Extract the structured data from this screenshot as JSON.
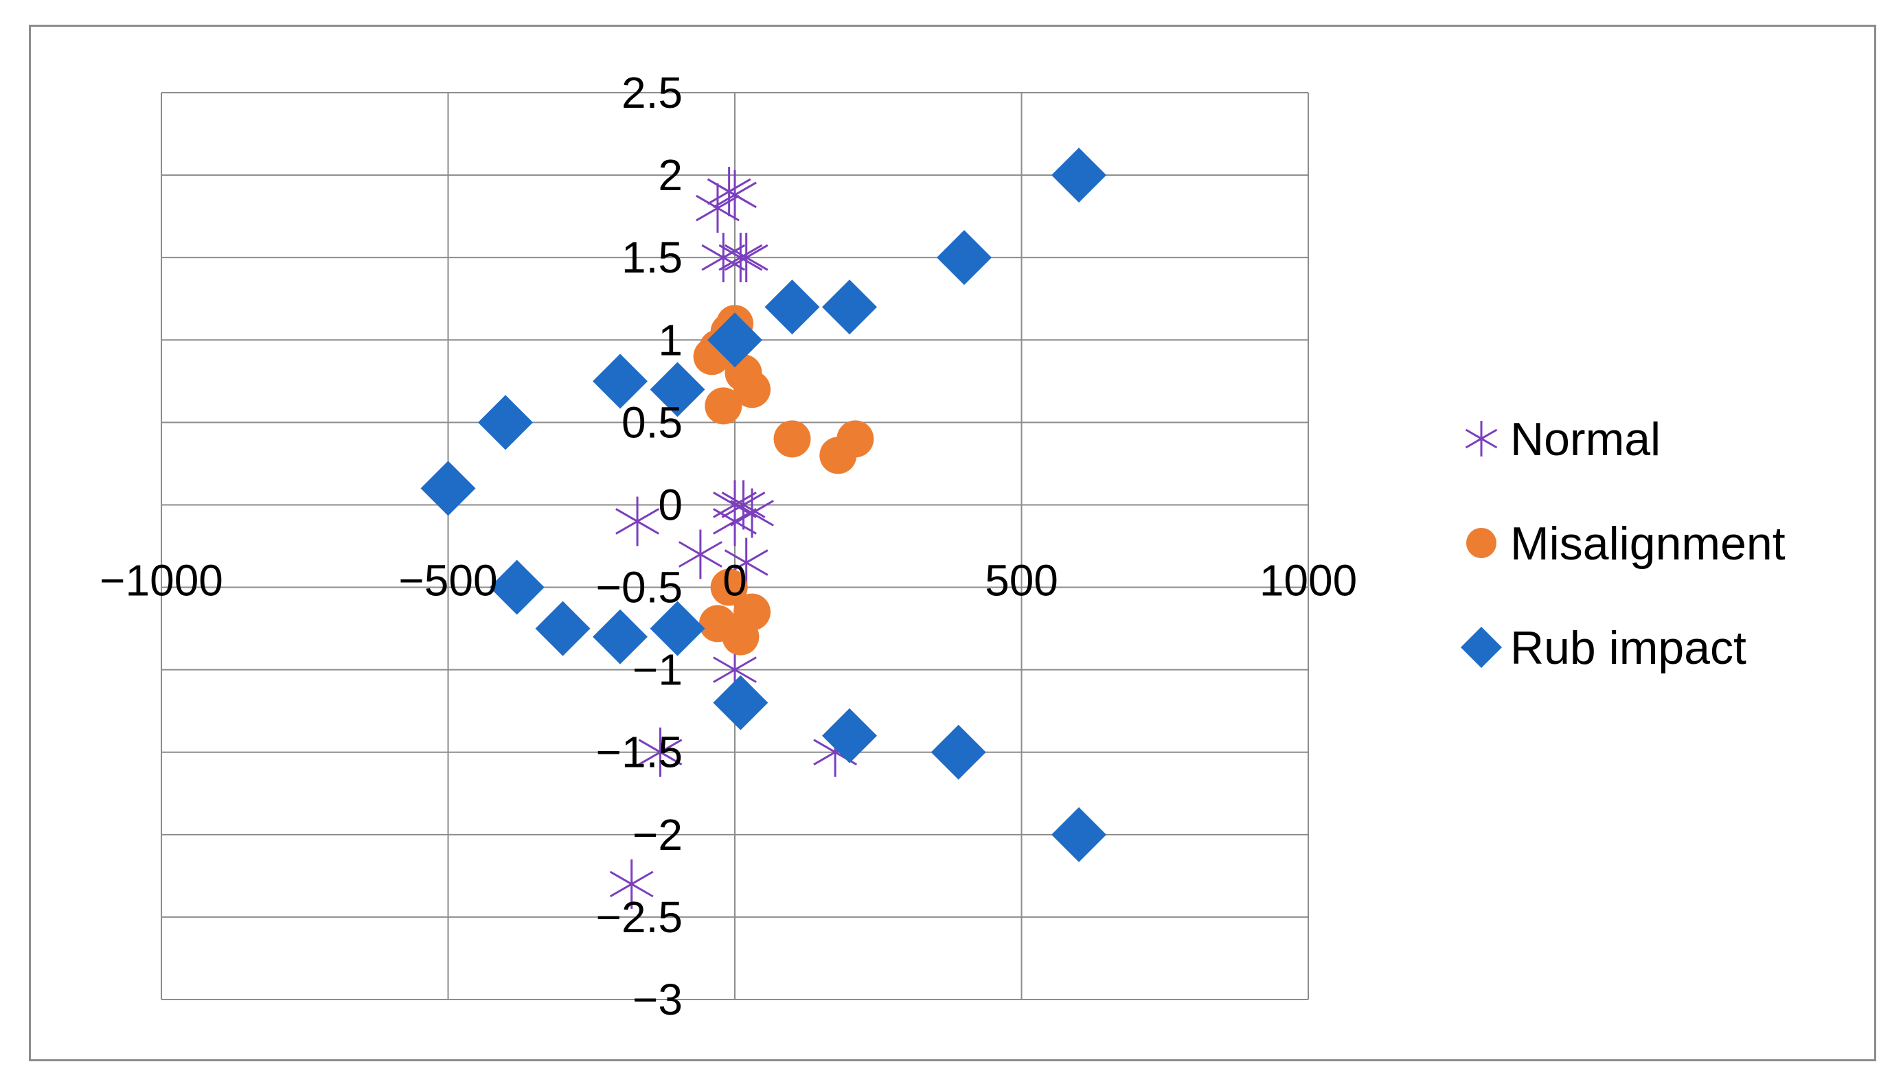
{
  "chart_data": {
    "type": "scatter",
    "title": "",
    "xlabel": "",
    "ylabel": "",
    "xlim": [
      -1000,
      1000
    ],
    "ylim": [
      -3,
      2.5
    ],
    "x_ticks": [
      -1000,
      -500,
      0,
      500,
      1000
    ],
    "y_ticks": [
      2.5,
      2,
      1.5,
      1,
      0.5,
      0,
      -0.5,
      -1,
      -1.5,
      -2,
      -2.5,
      -3
    ],
    "x_tick_labels": [
      "−1000",
      "−500",
      "0",
      "500",
      "1000"
    ],
    "y_tick_labels": [
      "2.5",
      "2",
      "1.5",
      "1",
      "0.5",
      "0",
      "−0.5",
      "−1",
      "−1.5",
      "−2",
      "−2.5",
      "−3"
    ],
    "grid": true,
    "legend_position": "right",
    "series": [
      {
        "name": "Normal",
        "marker": "asterisk",
        "color": "#7B3FBE",
        "points": [
          {
            "x": -30,
            "y": 1.8
          },
          {
            "x": -10,
            "y": 1.9
          },
          {
            "x": 0,
            "y": 1.88
          },
          {
            "x": -20,
            "y": 1.5
          },
          {
            "x": 10,
            "y": 1.5
          },
          {
            "x": 20,
            "y": 1.5
          },
          {
            "x": -170,
            "y": -0.1
          },
          {
            "x": -60,
            "y": -0.3
          },
          {
            "x": 0,
            "y": 0
          },
          {
            "x": 15,
            "y": 0
          },
          {
            "x": 30,
            "y": -0.05
          },
          {
            "x": 0,
            "y": -0.1
          },
          {
            "x": 20,
            "y": -0.35
          },
          {
            "x": 0,
            "y": -1
          },
          {
            "x": -130,
            "y": -1.5
          },
          {
            "x": 175,
            "y": -1.5
          },
          {
            "x": -180,
            "y": -2.3
          }
        ]
      },
      {
        "name": "Misalignment",
        "marker": "circle",
        "color": "#ED7D31",
        "points": [
          {
            "x": -10,
            "y": 1.05
          },
          {
            "x": -30,
            "y": 0.95
          },
          {
            "x": 0,
            "y": 1.1
          },
          {
            "x": -40,
            "y": 0.9
          },
          {
            "x": 15,
            "y": 0.8
          },
          {
            "x": 30,
            "y": 0.7
          },
          {
            "x": -20,
            "y": 0.6
          },
          {
            "x": 100,
            "y": 0.4
          },
          {
            "x": 180,
            "y": 0.3
          },
          {
            "x": 210,
            "y": 0.4
          },
          {
            "x": -10,
            "y": -0.5
          },
          {
            "x": 30,
            "y": -0.65
          },
          {
            "x": -30,
            "y": -0.72
          },
          {
            "x": 10,
            "y": -0.8
          }
        ]
      },
      {
        "name": "Rub impact",
        "marker": "diamond",
        "color": "#1F6CC7",
        "points": [
          {
            "x": 600,
            "y": 2
          },
          {
            "x": 400,
            "y": 1.5
          },
          {
            "x": 100,
            "y": 1.2
          },
          {
            "x": 200,
            "y": 1.2
          },
          {
            "x": 0,
            "y": 1
          },
          {
            "x": -200,
            "y": 0.75
          },
          {
            "x": -100,
            "y": 0.7
          },
          {
            "x": -400,
            "y": 0.5
          },
          {
            "x": -500,
            "y": 0.1
          },
          {
            "x": -380,
            "y": -0.5
          },
          {
            "x": -300,
            "y": -0.75
          },
          {
            "x": -200,
            "y": -0.8
          },
          {
            "x": -100,
            "y": -0.75
          },
          {
            "x": 10,
            "y": -1.2
          },
          {
            "x": 200,
            "y": -1.4
          },
          {
            "x": 390,
            "y": -1.5
          },
          {
            "x": 600,
            "y": -2
          }
        ]
      }
    ]
  }
}
